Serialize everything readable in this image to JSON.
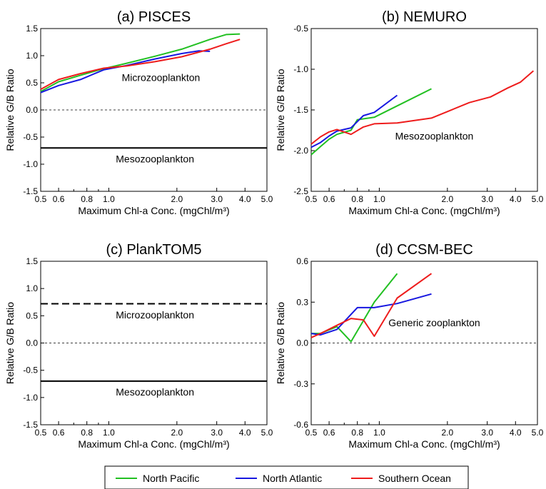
{
  "colors": {
    "North Pacific": "#22c022",
    "North Atlantic": "#1818e0",
    "Southern Ocean": "#ee1c1c"
  },
  "legend": {
    "placement": "bottom",
    "items": [
      "North Pacific",
      "North Atlantic",
      "Southern Ocean"
    ]
  },
  "chart_data": [
    {
      "id": "a",
      "type": "line",
      "title": "(a) PISCES",
      "xlabel": "Maximum Chl-a Conc. (mgChl/m³)",
      "ylabel": "Relative G/B Ratio",
      "xscale": "log",
      "xlim": [
        0.5,
        5.0
      ],
      "ylim": [
        -1.5,
        1.5
      ],
      "xticks": [
        "0.5",
        "0.6",
        "0.8",
        "1.0",
        "2.0",
        "3.0",
        "4.0",
        "5.0"
      ],
      "yticks": [
        "-1.5",
        "-1.0",
        "-0.5",
        "0.0",
        "0.5",
        "1.0",
        "1.5"
      ],
      "zero_line": true,
      "series": [
        {
          "name": "North Pacific",
          "x": [
            0.5,
            0.6,
            0.75,
            0.95,
            1.2,
            1.6,
            2.1,
            2.8,
            3.3,
            3.8
          ],
          "y": [
            0.34,
            0.52,
            0.64,
            0.76,
            0.86,
            0.99,
            1.12,
            1.3,
            1.39,
            1.4
          ]
        },
        {
          "name": "North Atlantic",
          "x": [
            0.5,
            0.6,
            0.75,
            0.95,
            1.2,
            1.6,
            2.1,
            2.5,
            2.8
          ],
          "y": [
            0.32,
            0.45,
            0.56,
            0.74,
            0.82,
            0.94,
            1.04,
            1.09,
            1.08
          ]
        },
        {
          "name": "Southern Ocean",
          "x": [
            0.5,
            0.6,
            0.75,
            0.95,
            1.2,
            1.6,
            2.1,
            2.8,
            3.3,
            3.8
          ],
          "y": [
            0.38,
            0.56,
            0.67,
            0.77,
            0.81,
            0.89,
            0.98,
            1.12,
            1.22,
            1.3
          ]
        }
      ],
      "reference_lines": [
        {
          "y": -0.7,
          "style": "solid",
          "label": "Mesozooplankton"
        }
      ],
      "annotations": [
        {
          "text": "Microzooplankton",
          "x": 1.7,
          "y": 0.6
        },
        {
          "text": "Mesozooplankton",
          "x": 1.6,
          "y": -0.9
        }
      ]
    },
    {
      "id": "b",
      "type": "line",
      "title": "(b) NEMURO",
      "xlabel": "Maximum Chl-a Conc. (mgChl/m³)",
      "ylabel": "Relative G/B Ratio",
      "xscale": "log",
      "xlim": [
        0.5,
        5.0
      ],
      "ylim": [
        -2.5,
        -0.5
      ],
      "xticks": [
        "0.5",
        "0.6",
        "0.8",
        "1.0",
        "2.0",
        "3.0",
        "4.0",
        "5.0"
      ],
      "yticks": [
        "-2.5",
        "-2.0",
        "-1.5",
        "-1.0",
        "-0.5"
      ],
      "zero_line": false,
      "series": [
        {
          "name": "North Pacific",
          "x": [
            0.5,
            0.55,
            0.6,
            0.65,
            0.75,
            0.8,
            0.95,
            1.2,
            1.7
          ],
          "y": [
            -2.05,
            -1.95,
            -1.86,
            -1.8,
            -1.75,
            -1.62,
            -1.59,
            -1.45,
            -1.24
          ]
        },
        {
          "name": "North Atlantic",
          "x": [
            0.5,
            0.55,
            0.6,
            0.65,
            0.75,
            0.85,
            0.95,
            1.2
          ],
          "y": [
            -1.96,
            -1.9,
            -1.82,
            -1.76,
            -1.72,
            -1.57,
            -1.53,
            -1.32
          ]
        },
        {
          "name": "Southern Ocean",
          "x": [
            0.5,
            0.55,
            0.6,
            0.65,
            0.75,
            0.85,
            0.95,
            1.2,
            1.7,
            2.0,
            2.5,
            3.1,
            3.7,
            4.2,
            4.8
          ],
          "y": [
            -1.92,
            -1.83,
            -1.77,
            -1.74,
            -1.8,
            -1.71,
            -1.67,
            -1.66,
            -1.6,
            -1.52,
            -1.41,
            -1.34,
            -1.23,
            -1.16,
            -1.02
          ]
        }
      ],
      "annotations": [
        {
          "text": "Mesozooplankton",
          "x": 1.75,
          "y": -1.82
        }
      ]
    },
    {
      "id": "c",
      "type": "line",
      "title": "(c) PlankTOM5",
      "xlabel": "Maximum Chl-a Conc. (mgChl/m³)",
      "ylabel": "Relative G/B Ratio",
      "xscale": "log",
      "xlim": [
        0.5,
        5.0
      ],
      "ylim": [
        -1.5,
        1.5
      ],
      "xticks": [
        "0.5",
        "0.6",
        "0.8",
        "1.0",
        "2.0",
        "3.0",
        "4.0",
        "5.0"
      ],
      "yticks": [
        "-1.5",
        "-1.0",
        "-0.5",
        "0.0",
        "0.5",
        "1.0",
        "1.5"
      ],
      "zero_line": true,
      "series": [],
      "reference_lines": [
        {
          "y": 0.72,
          "style": "dashed",
          "label": "Microzooplankton"
        },
        {
          "y": -0.7,
          "style": "solid",
          "label": "Mesozooplankton"
        }
      ],
      "annotations": [
        {
          "text": "Microzooplankton",
          "x": 1.6,
          "y": 0.52
        },
        {
          "text": "Mesozooplankton",
          "x": 1.6,
          "y": -0.9
        }
      ]
    },
    {
      "id": "d",
      "type": "line",
      "title": "(d) CCSM-BEC",
      "xlabel": "Maximum Chl-a Conc. (mgChl/m³)",
      "ylabel": "Relative G/B Ratio",
      "xscale": "log",
      "xlim": [
        0.5,
        5.0
      ],
      "ylim": [
        -0.6,
        0.6
      ],
      "xticks": [
        "0.5",
        "0.6",
        "0.8",
        "1.0",
        "2.0",
        "3.0",
        "4.0",
        "5.0"
      ],
      "yticks": [
        "-0.6",
        "-0.3",
        "0.0",
        "0.3",
        "0.6"
      ],
      "zero_line": true,
      "series": [
        {
          "name": "North Pacific",
          "x": [
            0.5,
            0.55,
            0.65,
            0.75,
            0.95,
            1.2
          ],
          "y": [
            0.07,
            0.07,
            0.12,
            0.01,
            0.3,
            0.51
          ]
        },
        {
          "name": "North Atlantic",
          "x": [
            0.5,
            0.55,
            0.65,
            0.8,
            0.95,
            1.2,
            1.7
          ],
          "y": [
            0.07,
            0.06,
            0.1,
            0.26,
            0.26,
            0.29,
            0.36
          ]
        },
        {
          "name": "Southern Ocean",
          "x": [
            0.5,
            0.55,
            0.65,
            0.75,
            0.85,
            0.95,
            1.2,
            1.7
          ],
          "y": [
            0.04,
            0.07,
            0.13,
            0.18,
            0.17,
            0.05,
            0.33,
            0.51
          ]
        }
      ],
      "annotations": [
        {
          "text": "Generic zooplankton",
          "x": 1.75,
          "y": 0.15
        }
      ]
    }
  ]
}
